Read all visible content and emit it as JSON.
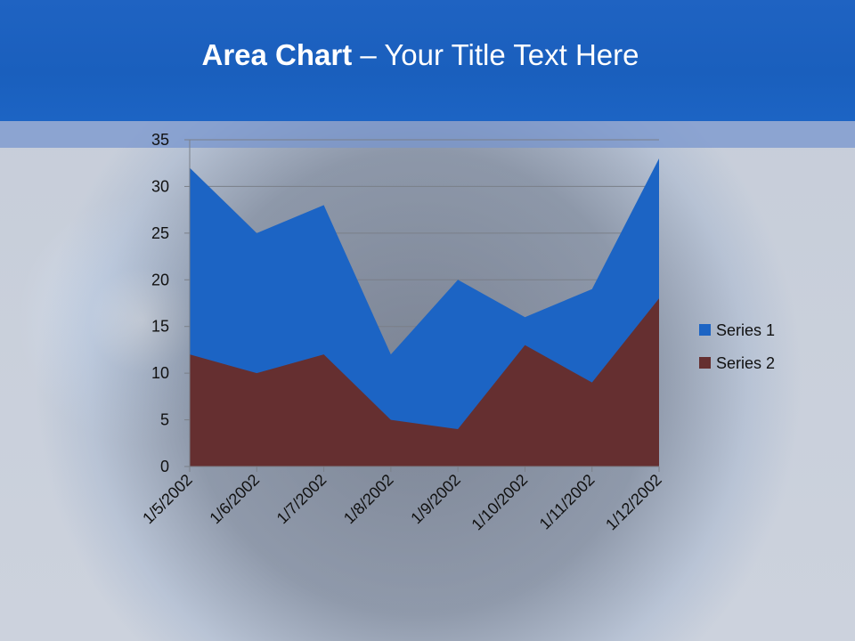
{
  "slide": {
    "title_bold": "Area Chart",
    "title_rest": " – Your Title Text Here"
  },
  "chart_data": {
    "type": "area",
    "title": "",
    "xlabel": "",
    "ylabel": "",
    "categories": [
      "1/5/2002",
      "1/6/2002",
      "1/7/2002",
      "1/8/2002",
      "1/9/2002",
      "1/10/2002",
      "1/11/2002",
      "1/12/2002"
    ],
    "series": [
      {
        "name": "Series 1",
        "values": [
          32,
          25,
          28,
          12,
          20,
          16,
          19,
          33
        ],
        "color": "#1c64c4"
      },
      {
        "name": "Series 2",
        "values": [
          12,
          10,
          12,
          5,
          4,
          13,
          9,
          18
        ],
        "color": "#652f30"
      }
    ],
    "ylim": [
      0,
      35
    ],
    "yticks": [
      0,
      5,
      10,
      15,
      20,
      25,
      30,
      35
    ],
    "grid": true,
    "legend_position": "right"
  }
}
